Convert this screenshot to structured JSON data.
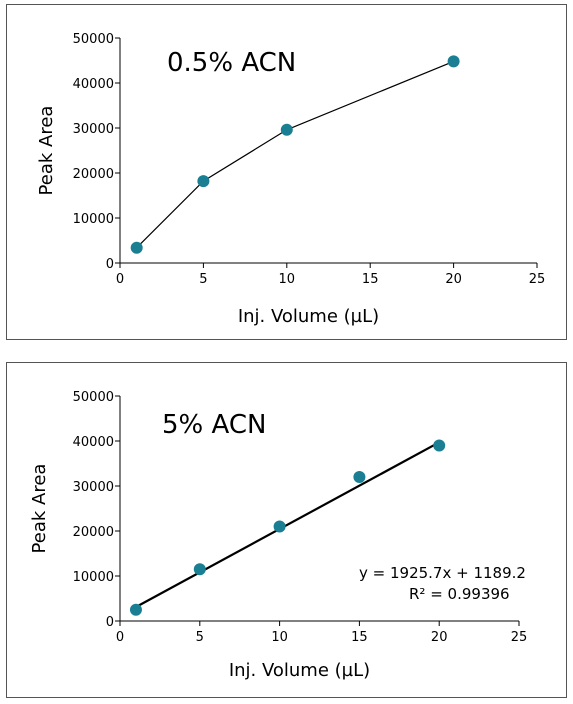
{
  "chart_data": [
    {
      "type": "line",
      "title": "0.5% ACN",
      "xlabel": "Inj. Volume (µL)",
      "ylabel": "Peak Area",
      "xlim": [
        0,
        25
      ],
      "ylim": [
        0,
        50000
      ],
      "xticks": [
        0,
        5,
        10,
        15,
        20,
        25
      ],
      "yticks": [
        0,
        10000,
        20000,
        30000,
        40000,
        50000
      ],
      "grid": false,
      "marker_color": "#1a7f93",
      "line_color": "#000000",
      "series": [
        {
          "x": [
            1,
            5,
            10,
            20
          ],
          "y": [
            3400,
            18200,
            29600,
            44800
          ]
        }
      ],
      "annotations": []
    },
    {
      "type": "scatter",
      "title": "5% ACN",
      "xlabel": "Inj. Volume (µL)",
      "ylabel": "Peak Area",
      "xlim": [
        0,
        25
      ],
      "ylim": [
        0,
        50000
      ],
      "xticks": [
        0,
        5,
        10,
        15,
        20,
        25
      ],
      "yticks": [
        0,
        10000,
        20000,
        30000,
        40000,
        50000
      ],
      "grid": false,
      "marker_color": "#1a7f93",
      "line_color": "#000000",
      "series": [
        {
          "x": [
            1,
            5,
            10,
            15,
            20
          ],
          "y": [
            2500,
            11500,
            21000,
            32000,
            39000
          ]
        }
      ],
      "trendline": {
        "slope": 1925.7,
        "intercept": 1189.2,
        "x_range": [
          1,
          20
        ]
      },
      "annotations": [
        "y = 1925.7x + 1189.2",
        "R² = 0.99396"
      ]
    }
  ]
}
